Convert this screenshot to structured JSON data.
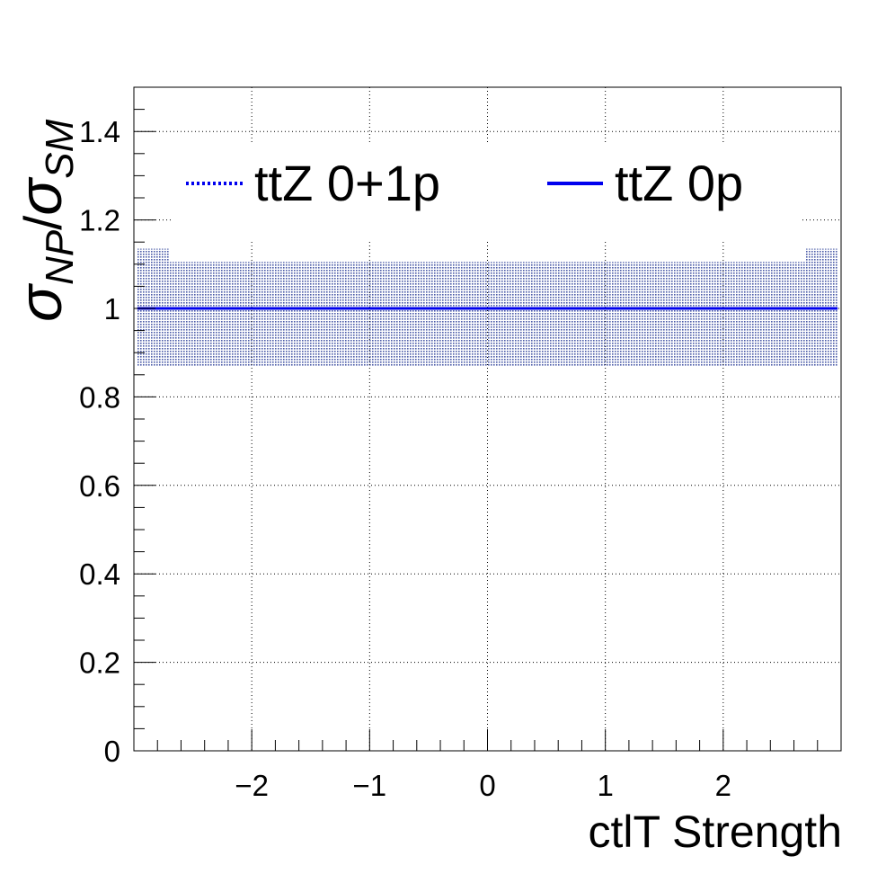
{
  "chart_data": {
    "type": "line",
    "xlabel": "ctlT Strength",
    "ylabel": {
      "symbol": "σ",
      "numerator_sub": "NP",
      "separator": "/",
      "denominator_sub": "SM"
    },
    "xlim": [
      -3.0,
      3.0
    ],
    "ylim": [
      0,
      1.5
    ],
    "xticks": [
      -2,
      -1,
      0,
      1,
      2
    ],
    "xtick_labels": [
      "−2",
      "−1",
      "0",
      "1",
      "2"
    ],
    "yticks": [
      0,
      0.2,
      0.4,
      0.6,
      0.8,
      1,
      1.2,
      1.4
    ],
    "ytick_labels": [
      "0",
      "0.2",
      "0.4",
      "0.6",
      "0.8",
      "1",
      "1.2",
      "1.4"
    ],
    "grid": true,
    "legend_position": "top",
    "series": [
      {
        "name": "ttZ 0+1p",
        "style": "dotted",
        "color": "#0000ee",
        "x": [
          -3.0,
          3.0
        ],
        "y": [
          1.0,
          1.0
        ],
        "band": [
          {
            "x": [
              -2.97,
              -2.7
            ],
            "low": 0.87,
            "high": 1.135
          },
          {
            "x": [
              -2.7,
              2.7
            ],
            "low": 0.87,
            "high": 1.105
          },
          {
            "x": [
              2.7,
              2.97
            ],
            "low": 0.87,
            "high": 1.135
          }
        ],
        "band_color": "#4a5aa8"
      },
      {
        "name": "ttZ 0p",
        "style": "solid",
        "color": "#0000ee",
        "x": [
          -3.0,
          3.0
        ],
        "y": [
          1.0,
          1.0
        ]
      }
    ]
  }
}
